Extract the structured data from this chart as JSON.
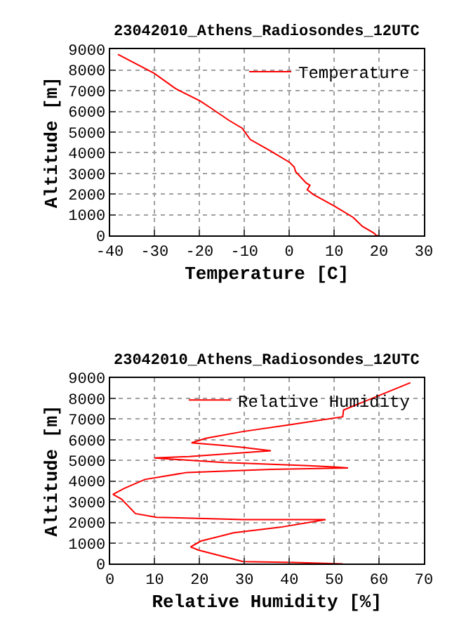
{
  "chart_data": [
    {
      "type": "line",
      "title": "23042010_Athens_Radiosondes_12UTC",
      "xlabel": "Temperature [C]",
      "ylabel": "Altitude [m]",
      "series": [
        {
          "name": "Temperature",
          "color": "#ff0000",
          "x": [
            20.1,
            19.4,
            18.9,
            16.3,
            14.2,
            10.0,
            5.3,
            4.0,
            4.6,
            3.75,
            1.4,
            1.1,
            0.1,
            -4.1,
            -8.7,
            -9.8,
            -10.5,
            -13.4,
            -17.6,
            -19.9,
            -25.4,
            -30.1,
            -38.2
          ],
          "values": [
            0,
            0,
            110,
            440,
            880,
            1430,
            1990,
            2210,
            2430,
            2540,
            3090,
            3310,
            3530,
            4080,
            4640,
            4970,
            5190,
            5560,
            6180,
            6510,
            7110,
            7840,
            8760
          ]
        }
      ],
      "xlim": [
        -40,
        30
      ],
      "xticks": [
        -40,
        -30,
        -20,
        -10,
        0,
        10,
        20,
        30
      ],
      "ylim": [
        0,
        9000
      ],
      "yticks": [
        0,
        1000,
        2000,
        3000,
        4000,
        5000,
        6000,
        7000,
        8000,
        9000
      ],
      "grid": true,
      "legend": "top right",
      "marker": "none",
      "line_style": "solid"
    },
    {
      "type": "line",
      "title": "23042010_Athens_Radiosondes_12UTC",
      "xlabel": "Relative Humidity [%]",
      "ylabel": "Altitude [m]",
      "series": [
        {
          "name": "Relative Humidity",
          "color": "#ff0000",
          "x": [
            51.9,
            41.1,
            29.7,
            19.8,
            18.0,
            20.3,
            27.6,
            38.0,
            48.1,
            29.7,
            10.4,
            5.7,
            2.6,
            0.7,
            3.1,
            7.8,
            17.2,
            35.9,
            53.1,
            50.5,
            44.3,
            25.5,
            9.9,
            17.7,
            35.9,
            29.7,
            24.5,
            18.2,
            21.4,
            29.7,
            40.1,
            51.9,
            52.1,
            67.0
          ],
          "values": [
            0,
            70,
            110,
            660,
            820,
            1100,
            1500,
            1770,
            2140,
            2140,
            2250,
            2430,
            3130,
            3360,
            3640,
            4080,
            4420,
            4570,
            4640,
            4680,
            4750,
            4900,
            5120,
            5190,
            5470,
            5630,
            5740,
            5850,
            6070,
            6400,
            6730,
            7110,
            7440,
            8760
          ]
        }
      ],
      "xlim": [
        0,
        70
      ],
      "xticks": [
        0,
        10,
        20,
        30,
        40,
        50,
        60,
        70
      ],
      "ylim": [
        0,
        9000
      ],
      "yticks": [
        0,
        1000,
        2000,
        3000,
        4000,
        5000,
        6000,
        7000,
        8000,
        9000
      ],
      "grid": true,
      "legend": "top right",
      "marker": "none",
      "line_style": "solid"
    }
  ]
}
